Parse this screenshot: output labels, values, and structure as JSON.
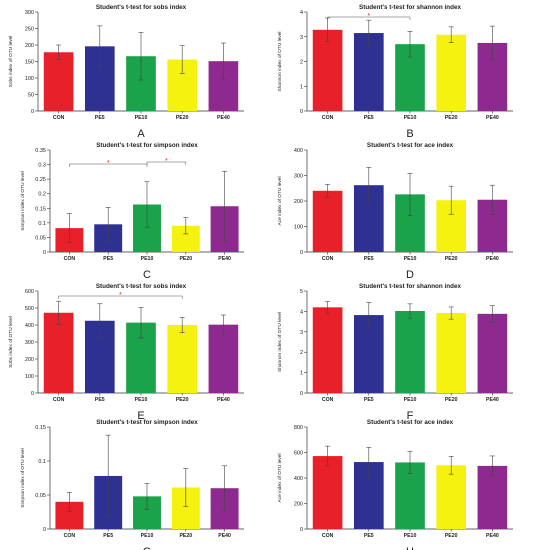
{
  "colors": {
    "CON": "#e8202a",
    "PE5": "#2e3192",
    "PE10": "#1aa34a",
    "PE20": "#f5f20f",
    "PE40": "#8e2a8f",
    "significance": "#e8202a",
    "axis": "#333333",
    "error_bar": "#444444"
  },
  "chart_data": [
    {
      "type": "bar",
      "panel_label": "A",
      "title": "Student's t-test for sobs index",
      "ylabel": "Sobs index of OTU level",
      "categories": [
        "CON",
        "PE5",
        "PE10",
        "PE20",
        "PE40"
      ],
      "values": [
        178,
        196,
        166,
        156,
        151
      ],
      "errors": [
        22,
        62,
        72,
        42,
        55
      ],
      "ylim": [
        0,
        300
      ],
      "yticks": [
        "0",
        "50",
        "100",
        "150",
        "200",
        "250",
        "300"
      ],
      "significance": []
    },
    {
      "type": "bar",
      "panel_label": "B",
      "title": "Student's t-test for shannon index",
      "ylabel": "Shannon index of OTU level",
      "categories": [
        "CON",
        "PE5",
        "PE10",
        "PE20",
        "PE40"
      ],
      "values": [
        3.28,
        3.15,
        2.7,
        3.08,
        2.75
      ],
      "errors": [
        0.48,
        0.52,
        0.52,
        0.32,
        0.68
      ],
      "ylim": [
        0,
        4
      ],
      "yticks": [
        "0",
        "1",
        "2",
        "3",
        "4"
      ],
      "significance": [
        {
          "from": 0,
          "to": 2,
          "mark": "*"
        }
      ]
    },
    {
      "type": "bar",
      "panel_label": "C",
      "title": "Student's t-test for simpson index",
      "ylabel": "Simpson index of OTU level",
      "categories": [
        "CON",
        "PE5",
        "PE10",
        "PE20",
        "PE40"
      ],
      "values": [
        0.082,
        0.095,
        0.163,
        0.09,
        0.157
      ],
      "errors": [
        0.05,
        0.058,
        0.078,
        0.028,
        0.12
      ],
      "ylim": [
        0,
        0.35
      ],
      "yticks": [
        "0",
        "0.05",
        "0.1",
        "0.15",
        "0.2",
        "0.25",
        "0.3",
        "0.35"
      ],
      "significance": [
        {
          "from": 0,
          "to": 2,
          "mark": "*"
        },
        {
          "from": 2,
          "to": 3,
          "mark": "*"
        }
      ]
    },
    {
      "type": "bar",
      "panel_label": "D",
      "title": "Student's t-test for ace index",
      "ylabel": "Ace index of OTU level",
      "categories": [
        "CON",
        "PE5",
        "PE10",
        "PE20",
        "PE40"
      ],
      "values": [
        240,
        262,
        226,
        203,
        205
      ],
      "errors": [
        25,
        70,
        82,
        55,
        57
      ],
      "ylim": [
        0,
        400
      ],
      "yticks": [
        "0",
        "100",
        "200",
        "300",
        "400"
      ],
      "significance": []
    },
    {
      "type": "bar",
      "panel_label": "E",
      "title": "Student's t-test for sobs index",
      "ylabel": "Sobs index of OTU level",
      "categories": [
        "CON",
        "PE5",
        "PE10",
        "PE20",
        "PE40"
      ],
      "values": [
        472,
        425,
        414,
        400,
        402
      ],
      "errors": [
        68,
        100,
        90,
        45,
        57
      ],
      "ylim": [
        0,
        600
      ],
      "yticks": [
        "0",
        "100",
        "200",
        "300",
        "400",
        "500",
        "600"
      ],
      "significance": [
        {
          "from": 0,
          "to": 3,
          "mark": "*"
        }
      ]
    },
    {
      "type": "bar",
      "panel_label": "F",
      "title": "Student's t-test for shannon index",
      "ylabel": "Shannon index of OTU level",
      "categories": [
        "CON",
        "PE5",
        "PE10",
        "PE20",
        "PE40"
      ],
      "values": [
        4.2,
        3.82,
        4.02,
        3.92,
        3.88
      ],
      "errors": [
        0.28,
        0.62,
        0.35,
        0.3,
        0.4
      ],
      "ylim": [
        0,
        5
      ],
      "yticks": [
        "0",
        "1",
        "2",
        "3",
        "4",
        "5"
      ],
      "significance": []
    },
    {
      "type": "bar",
      "panel_label": "G",
      "title": "Student's t-test for simpson index",
      "ylabel": "Simpson index of OTU level",
      "categories": [
        "CON",
        "PE5",
        "PE10",
        "PE20",
        "PE40"
      ],
      "values": [
        0.04,
        0.078,
        0.048,
        0.061,
        0.06
      ],
      "errors": [
        0.014,
        0.06,
        0.019,
        0.028,
        0.033
      ],
      "ylim": [
        0,
        0.15
      ],
      "yticks": [
        "0",
        "0.05",
        "0.1",
        "0.15"
      ],
      "significance": []
    },
    {
      "type": "bar",
      "panel_label": "H",
      "title": "Student's t-test for ace index",
      "ylabel": "Ace index of OTU level",
      "categories": [
        "CON",
        "PE5",
        "PE10",
        "PE20",
        "PE40"
      ],
      "values": [
        572,
        525,
        522,
        500,
        495
      ],
      "errors": [
        78,
        115,
        88,
        70,
        78
      ],
      "ylim": [
        0,
        800
      ],
      "yticks": [
        "0",
        "200",
        "400",
        "600",
        "800"
      ],
      "significance": []
    }
  ]
}
